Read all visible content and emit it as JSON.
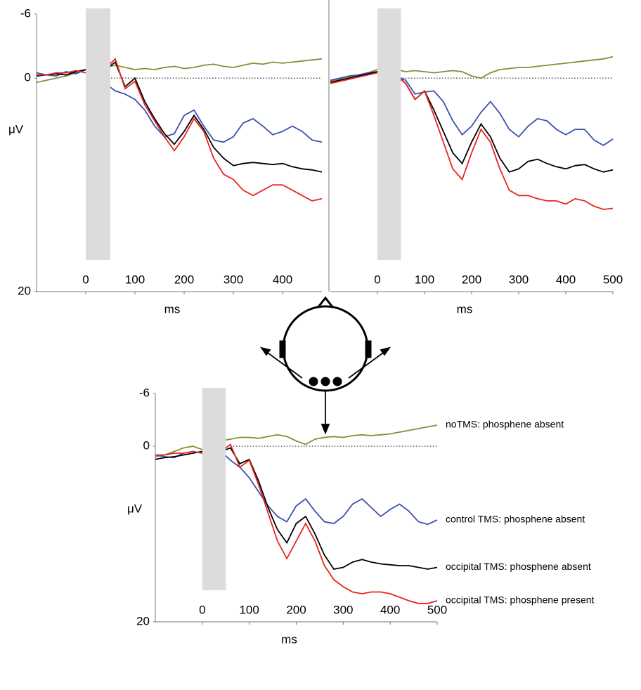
{
  "chart_data": [
    {
      "type": "line",
      "xlabel": "ms",
      "ylabel": "μV",
      "x": [
        -100,
        -80,
        -60,
        -40,
        -20,
        0,
        20,
        40,
        60,
        80,
        100,
        120,
        140,
        160,
        180,
        200,
        220,
        240,
        260,
        280,
        300,
        320,
        340,
        360,
        380,
        400,
        420,
        440,
        460,
        480
      ],
      "xlim": [
        -100,
        480
      ],
      "xticks": [
        0,
        100,
        200,
        300,
        400
      ],
      "ylim": [
        -6,
        20
      ],
      "yticks": [
        -6,
        0,
        20
      ],
      "y_inverted": true,
      "reference_line": 0,
      "shaded_span": [
        0,
        50
      ],
      "series": [
        {
          "color": "#8b8b3a",
          "values": [
            0.4,
            0.2,
            0,
            -0.2,
            -0.5,
            -0.8,
            -0.9,
            -1,
            -1.2,
            -1,
            -0.8,
            -0.9,
            -0.8,
            -1,
            -1.1,
            -0.9,
            -1,
            -1.2,
            -1.3,
            -1.1,
            -1,
            -1.2,
            -1.4,
            -1.3,
            -1.5,
            -1.4,
            -1.5,
            -1.6,
            -1.7,
            -1.8
          ]
        },
        {
          "color": "#3b50b4",
          "values": [
            -0.5,
            -0.3,
            -0.2,
            -0.6,
            -0.4,
            -0.8,
            -0.5,
            0.5,
            1.2,
            1.5,
            2,
            3,
            4.5,
            5.5,
            5.2,
            3.5,
            3,
            4.5,
            5.8,
            6,
            5.5,
            4.2,
            3.8,
            4.5,
            5.3,
            5,
            4.5,
            5,
            5.8,
            6
          ]
        },
        {
          "color": "#000000",
          "values": [
            -0.2,
            -0.3,
            -0.4,
            -0.3,
            -0.6,
            -0.8,
            -0.5,
            -0.8,
            -1.5,
            0.8,
            0,
            2.2,
            3.8,
            5.2,
            6.2,
            5,
            3.5,
            4.8,
            6.5,
            7.5,
            8.2,
            8,
            7.9,
            8,
            8.1,
            8,
            8.3,
            8.5,
            8.6,
            8.8
          ]
        },
        {
          "color": "#e8251f",
          "values": [
            -0.3,
            -0.3,
            -0.5,
            -0.5,
            -0.7,
            -0.5,
            -0.6,
            -0.9,
            -1.8,
            1,
            0.3,
            2.5,
            4,
            5.5,
            6.8,
            5.5,
            3.8,
            5,
            7.5,
            9,
            9.5,
            10.5,
            11,
            10.5,
            10,
            10,
            10.5,
            11,
            11.5,
            11.3
          ]
        }
      ]
    },
    {
      "type": "line",
      "xlabel": "ms",
      "x": [
        -100,
        -80,
        -60,
        -40,
        -20,
        0,
        20,
        40,
        60,
        80,
        100,
        120,
        140,
        160,
        180,
        200,
        220,
        240,
        260,
        280,
        300,
        320,
        340,
        360,
        380,
        400,
        420,
        440,
        460,
        480,
        500
      ],
      "xlim": [
        -100,
        500
      ],
      "xticks": [
        0,
        100,
        200,
        300,
        400,
        500
      ],
      "ylim": [
        -6,
        20
      ],
      "y_inverted": true,
      "reference_line": 0,
      "shaded_span": [
        0,
        50
      ],
      "series": [
        {
          "color": "#8b8b3a",
          "values": [
            0.3,
            0.1,
            -0.1,
            -0.3,
            -0.5,
            -0.8,
            -0.9,
            -0.8,
            -0.6,
            -0.7,
            -0.6,
            -0.5,
            -0.6,
            -0.7,
            -0.6,
            -0.2,
            0,
            -0.5,
            -0.8,
            -0.9,
            -1,
            -1,
            -1.1,
            -1.2,
            -1.3,
            -1.4,
            -1.5,
            -1.6,
            -1.7,
            -1.8,
            -2
          ]
        },
        {
          "color": "#3b50b4",
          "values": [
            0.2,
            0,
            -0.2,
            -0.3,
            -0.5,
            -0.6,
            -0.4,
            -0.2,
            0.2,
            1.5,
            1.3,
            1.2,
            2.2,
            4,
            5.3,
            4.5,
            3.2,
            2.2,
            3.3,
            4.8,
            5.5,
            4.5,
            3.8,
            4,
            4.8,
            5.3,
            4.8,
            4.8,
            5.8,
            6.3,
            5.7
          ]
        },
        {
          "color": "#000000",
          "values": [
            0.4,
            0.2,
            0,
            -0.2,
            -0.4,
            -0.6,
            -0.5,
            -0.3,
            0.5,
            2,
            1.2,
            3,
            5,
            7,
            8,
            6,
            4.3,
            5.5,
            7.5,
            8.8,
            8.5,
            7.8,
            7.6,
            8,
            8.3,
            8.5,
            8.2,
            8.1,
            8.5,
            8.8,
            8.6
          ]
        },
        {
          "color": "#e8251f",
          "values": [
            0.5,
            0.3,
            0.1,
            -0.1,
            -0.3,
            -0.5,
            -0.4,
            -0.2,
            0.5,
            2,
            1.2,
            3.5,
            6,
            8.5,
            9.5,
            7,
            4.8,
            6,
            8.5,
            10.5,
            11,
            11,
            11.3,
            11.5,
            11.5,
            11.8,
            11.3,
            11.5,
            12,
            12.3,
            12.2
          ]
        }
      ]
    },
    {
      "type": "line",
      "xlabel": "ms",
      "ylabel": "μV",
      "x": [
        -100,
        -80,
        -60,
        -40,
        -20,
        0,
        20,
        40,
        60,
        80,
        100,
        120,
        140,
        160,
        180,
        200,
        220,
        240,
        260,
        280,
        300,
        320,
        340,
        360,
        380,
        400,
        420,
        440,
        460,
        480,
        500
      ],
      "xlim": [
        -100,
        500
      ],
      "xticks": [
        0,
        100,
        200,
        300,
        400,
        500
      ],
      "ylim": [
        -6,
        20
      ],
      "yticks": [
        -6,
        0,
        20
      ],
      "y_inverted": true,
      "reference_line": 0,
      "shaded_span": [
        0,
        50
      ],
      "legend": "right",
      "series": [
        {
          "name": "noTMS: phosphene absent",
          "color": "#8b8b3a",
          "values": [
            1.2,
            1,
            0.6,
            0.2,
            0,
            0.4,
            -0.3,
            -0.6,
            -0.8,
            -1,
            -1,
            -0.9,
            -1.1,
            -1.3,
            -1.1,
            -0.6,
            -0.2,
            -0.8,
            -1,
            -1.1,
            -1,
            -1.2,
            -1.3,
            -1.2,
            -1.3,
            -1.4,
            -1.6,
            -1.8,
            -2,
            -2.2,
            -2.4
          ]
        },
        {
          "name": "control TMS: phosphene absent",
          "color": "#3b50b4",
          "values": [
            1,
            1.2,
            1.3,
            0.8,
            0.6,
            0.8,
            0.5,
            0.6,
            1.6,
            2.4,
            3.6,
            5.2,
            6.8,
            8,
            8.6,
            6.8,
            6,
            7.4,
            8.6,
            8.8,
            8,
            6.6,
            6,
            7,
            8,
            7.2,
            6.6,
            7.4,
            8.6,
            8.9,
            8.4
          ]
        },
        {
          "name": "occipital TMS: phosphene absent",
          "color": "#000000",
          "values": [
            1.5,
            1.3,
            1.2,
            1,
            0.8,
            0.6,
            0.5,
            0.6,
            0.2,
            2,
            1.5,
            4,
            7,
            9.5,
            11,
            8.8,
            8,
            10,
            12.4,
            14,
            13.8,
            13.2,
            12.9,
            13.2,
            13.4,
            13.5,
            13.6,
            13.6,
            13.8,
            14,
            13.8
          ]
        },
        {
          "name": "occipital TMS: phosphene present",
          "color": "#e8251f",
          "values": [
            1,
            1,
            0.8,
            0.8,
            0.6,
            0.8,
            0.6,
            0.6,
            -0.2,
            2.4,
            1.6,
            4.4,
            7.6,
            10.8,
            12.8,
            10.8,
            8.8,
            10.8,
            13.6,
            15.2,
            16,
            16.6,
            16.8,
            16.6,
            16.6,
            16.8,
            17.2,
            17.6,
            17.9,
            17.9,
            17.6
          ]
        }
      ]
    }
  ]
}
